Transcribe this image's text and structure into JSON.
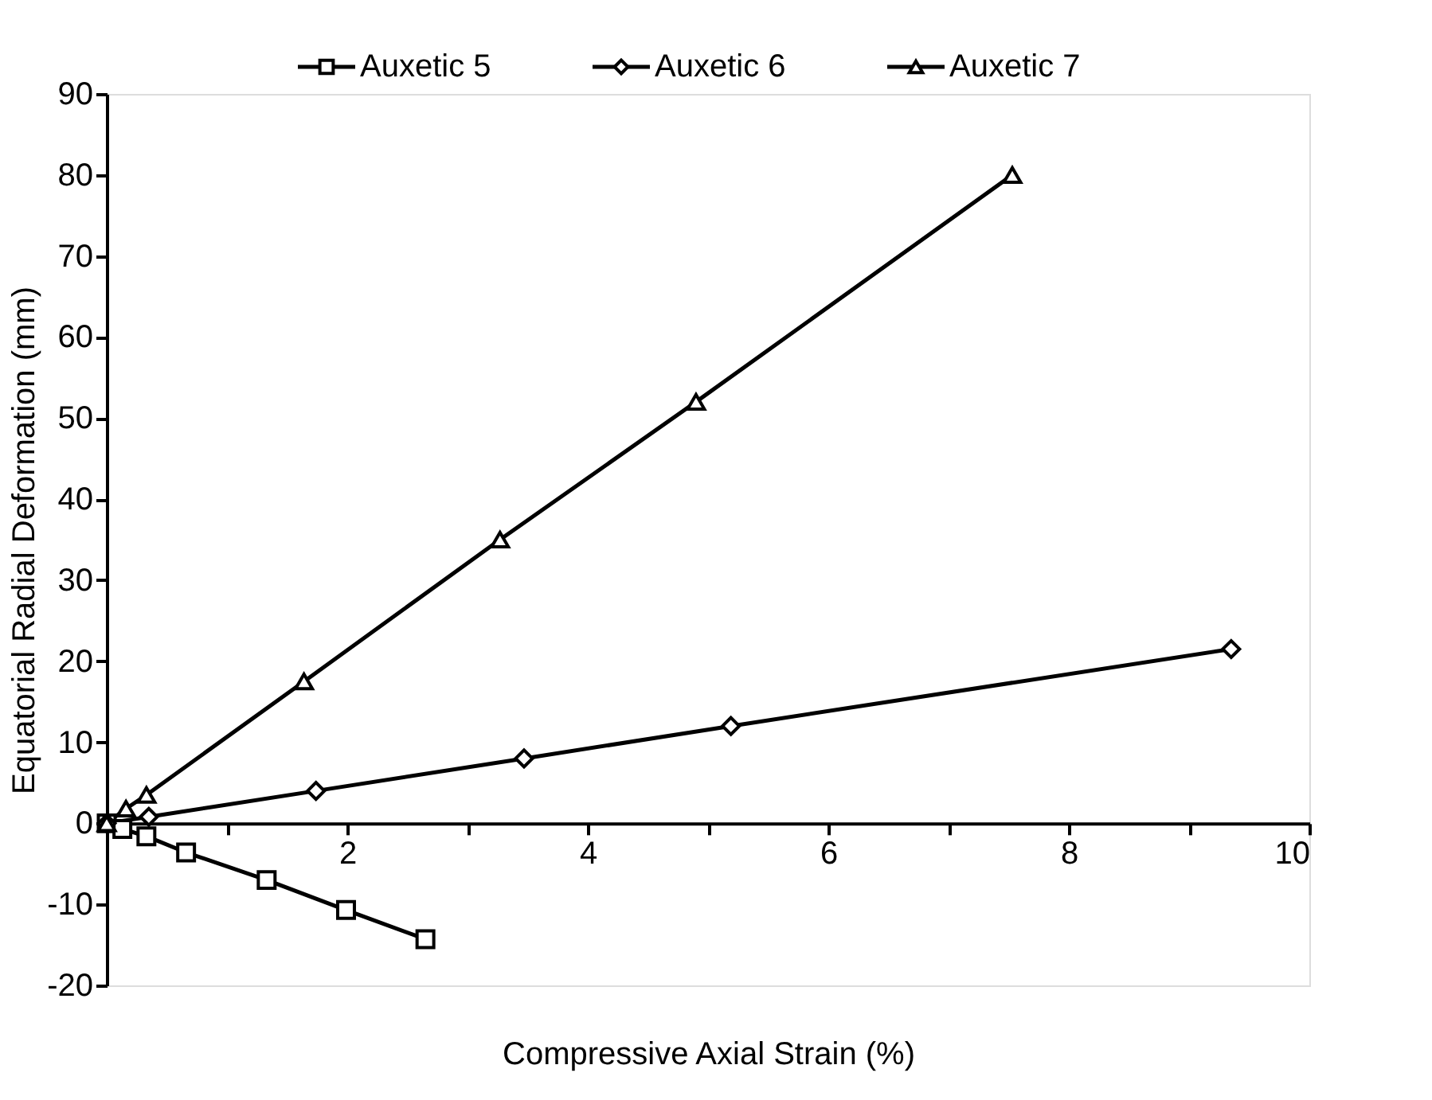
{
  "chart_data": {
    "type": "line",
    "xlabel": "Compressive Axial Strain (%)",
    "ylabel": "Equatorial Radial Deformation (mm)",
    "xlim": [
      0,
      10
    ],
    "xticks": [
      {
        "value": 0,
        "label": null
      },
      {
        "value": 1,
        "label": null
      },
      2,
      {
        "value": 3,
        "label": null
      },
      4,
      {
        "value": 5,
        "label": null
      },
      6,
      {
        "value": 7,
        "label": null
      },
      8,
      {
        "value": 9,
        "label": null
      },
      10
    ],
    "ylim": [
      -20,
      90
    ],
    "yticks": [
      -20,
      -10,
      0,
      10,
      20,
      30,
      40,
      50,
      60,
      70,
      80,
      90
    ],
    "grid": false,
    "legend": "top",
    "line_style": "solid",
    "series": [
      {
        "name": "Auxetic 5",
        "color": "#000000",
        "marker": "square",
        "x": [
          0,
          0.13,
          0.33,
          0.66,
          1.33,
          1.99,
          2.65
        ],
        "values": [
          0,
          -0.7,
          -1.6,
          -3.6,
          -7,
          -10.7,
          -14.3
        ]
      },
      {
        "name": "Auxetic 6",
        "color": "#000000",
        "marker": "diamond",
        "x": [
          0,
          0.35,
          1.74,
          3.47,
          5.19,
          9.35
        ],
        "values": [
          0,
          0.8,
          4,
          8,
          12,
          21.5
        ]
      },
      {
        "name": "Auxetic 7",
        "color": "#000000",
        "marker": "triangle",
        "x": [
          0,
          0.16,
          0.33,
          1.64,
          3.27,
          4.9,
          7.53
        ],
        "values": [
          0,
          1.8,
          3.5,
          17.5,
          35,
          52,
          80
        ]
      }
    ]
  }
}
